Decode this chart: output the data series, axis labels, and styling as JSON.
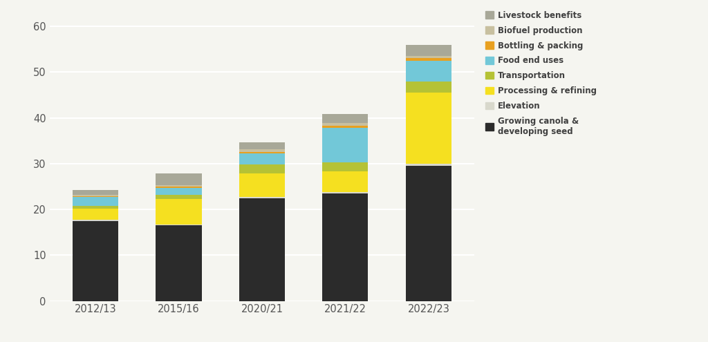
{
  "categories": [
    "2012/13",
    "2015/16",
    "2020/21",
    "2021/22",
    "2022/23"
  ],
  "segments": {
    "Growing canola &\ndeveloping seed": {
      "values": [
        17.5,
        16.5,
        22.5,
        23.5,
        29.5
      ],
      "color": "#2b2b2b"
    },
    "Elevation": {
      "values": [
        0.2,
        0.2,
        0.3,
        0.3,
        0.5
      ],
      "color": "#d8d8cc"
    },
    "Processing & refining": {
      "values": [
        2.5,
        5.5,
        5.0,
        4.5,
        15.5
      ],
      "color": "#f5e020"
    },
    "Transportation": {
      "values": [
        0.5,
        1.0,
        2.0,
        2.0,
        2.5
      ],
      "color": "#b5c235"
    },
    "Food end uses": {
      "values": [
        2.0,
        1.5,
        2.5,
        7.5,
        4.5
      ],
      "color": "#72c8d8"
    },
    "Bottling & packing": {
      "values": [
        0.2,
        0.3,
        0.3,
        0.5,
        0.5
      ],
      "color": "#e8a020"
    },
    "Biofuel production": {
      "values": [
        0.3,
        0.3,
        0.5,
        0.5,
        0.5
      ],
      "color": "#c8c0a0"
    },
    "Livestock benefits": {
      "values": [
        1.0,
        2.5,
        1.5,
        2.0,
        2.5
      ],
      "color": "#a8a898"
    }
  },
  "ylim": [
    0,
    62
  ],
  "yticks": [
    0,
    10,
    20,
    30,
    40,
    50,
    60
  ],
  "bar_width": 0.55,
  "background_color": "#f5f5f0",
  "grid_color": "#ffffff",
  "legend_order": [
    "Livestock benefits",
    "Biofuel production",
    "Bottling & packing",
    "Food end uses",
    "Transportation",
    "Processing & refining",
    "Elevation",
    "Growing canola &\ndeveloping seed"
  ],
  "legend_colors": {
    "Livestock benefits": "#a8a898",
    "Biofuel production": "#c8c0a0",
    "Bottling & packing": "#e8a020",
    "Food end uses": "#72c8d8",
    "Transportation": "#b5c235",
    "Processing & refining": "#f5e020",
    "Elevation": "#d8d8cc",
    "Growing canola &\ndeveloping seed": "#2b2b2b"
  }
}
